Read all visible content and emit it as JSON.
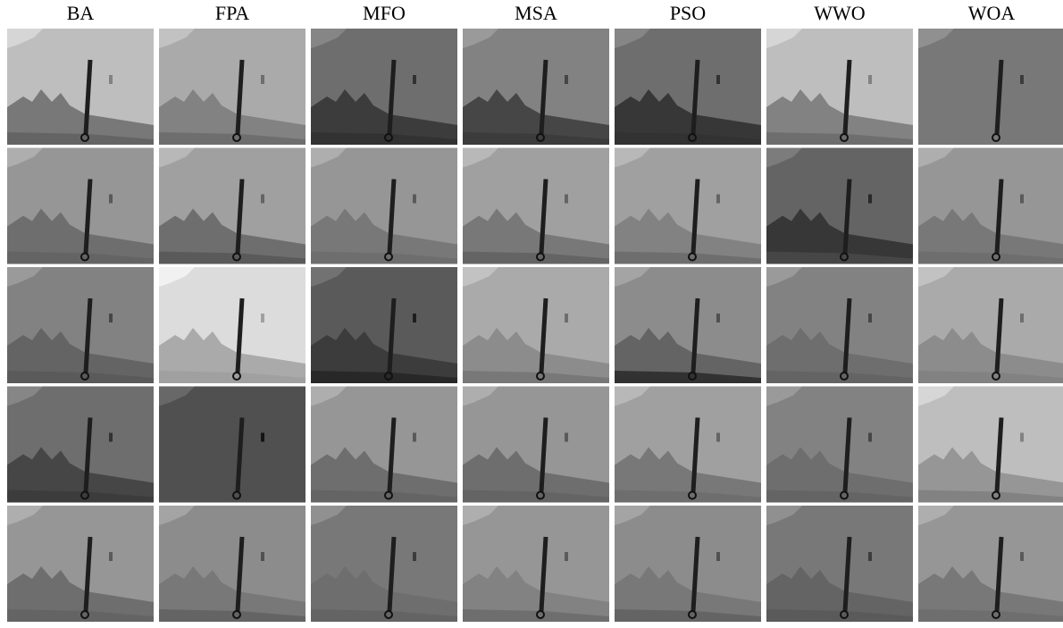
{
  "headers": [
    "BA",
    "FPA",
    "MFO",
    "MSA",
    "PSO",
    "WWO",
    "WOA"
  ]
}
